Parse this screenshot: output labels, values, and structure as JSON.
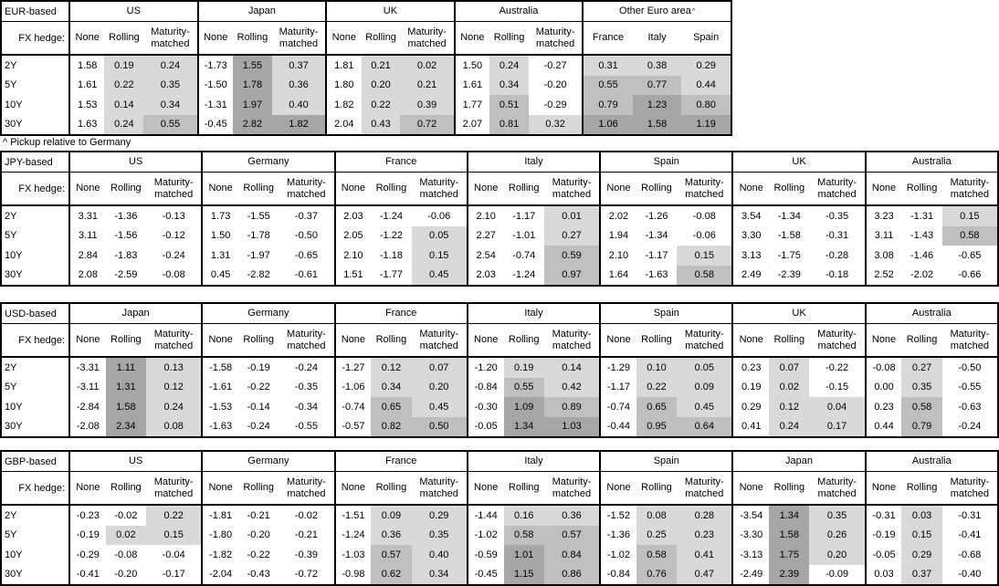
{
  "footnote": "^ Pickup relative to Germany",
  "row_header_label": "FX hedge:",
  "tenors": [
    "2Y",
    "5Y",
    "10Y",
    "30Y"
  ],
  "hedge_columns": [
    "None",
    "Rolling",
    "Maturity-matched"
  ],
  "colors": {
    "border": "#000000",
    "background": "#ffffff",
    "shade_light": "#d9d9d9",
    "shade_mid": "#bfbfbf",
    "shade_dark": "#a6a6a6"
  },
  "shading_rule": {
    "applies_to": "Rolling and Maturity-matched columns (all columns in Other Euro area block)",
    "light_min": 0,
    "mid_min": 0.5,
    "dark_min": 1.0
  },
  "tables": [
    {
      "base": "EUR-based",
      "groups": [
        {
          "country": "US",
          "cols": [
            "None",
            "Rolling",
            "Maturity-matched"
          ],
          "rows": [
            [
              "1.58",
              "0.19",
              "0.24"
            ],
            [
              "1.61",
              "0.22",
              "0.35"
            ],
            [
              "1.53",
              "0.14",
              "0.34"
            ],
            [
              "1.63",
              "0.24",
              "0.55"
            ]
          ]
        },
        {
          "country": "Japan",
          "cols": [
            "None",
            "Rolling",
            "Maturity-matched"
          ],
          "rows": [
            [
              "-1.73",
              "1.55",
              "0.37"
            ],
            [
              "-1.50",
              "1.78",
              "0.36"
            ],
            [
              "-1.31",
              "1.97",
              "0.40"
            ],
            [
              "-0.45",
              "2.82",
              "1.82"
            ]
          ]
        },
        {
          "country": "UK",
          "cols": [
            "None",
            "Rolling",
            "Maturity-matched"
          ],
          "rows": [
            [
              "1.81",
              "0.21",
              "0.02"
            ],
            [
              "1.80",
              "0.20",
              "0.21"
            ],
            [
              "1.82",
              "0.22",
              "0.39"
            ],
            [
              "2.04",
              "0.43",
              "0.72"
            ]
          ]
        },
        {
          "country": "Australia",
          "cols": [
            "None",
            "Rolling",
            "Maturity-matched"
          ],
          "rows": [
            [
              "1.50",
              "0.24",
              "-0.27"
            ],
            [
              "1.61",
              "0.34",
              "-0.20"
            ],
            [
              "1.77",
              "0.51",
              "-0.29"
            ],
            [
              "2.07",
              "0.81",
              "0.32"
            ]
          ]
        },
        {
          "country": "Other Euro area",
          "sup": "^",
          "shade_all": true,
          "cols": [
            "France",
            "Italy",
            "Spain"
          ],
          "rows": [
            [
              "0.31",
              "0.38",
              "0.29"
            ],
            [
              "0.55",
              "0.77",
              "0.44"
            ],
            [
              "0.79",
              "1.23",
              "0.80"
            ],
            [
              "1.06",
              "1.58",
              "1.19"
            ]
          ]
        }
      ]
    },
    {
      "base": "JPY-based",
      "groups": [
        {
          "country": "US",
          "cols": [
            "None",
            "Rolling",
            "Maturity-matched"
          ],
          "rows": [
            [
              "3.31",
              "-1.36",
              "-0.13"
            ],
            [
              "3.11",
              "-1.56",
              "-0.12"
            ],
            [
              "2.84",
              "-1.83",
              "-0.24"
            ],
            [
              "2.08",
              "-2.59",
              "-0.08"
            ]
          ]
        },
        {
          "country": "Germany",
          "cols": [
            "None",
            "Rolling",
            "Maturity-matched"
          ],
          "rows": [
            [
              "1.73",
              "-1.55",
              "-0.37"
            ],
            [
              "1.50",
              "-1.78",
              "-0.50"
            ],
            [
              "1.31",
              "-1.97",
              "-0.65"
            ],
            [
              "0.45",
              "-2.82",
              "-0.61"
            ]
          ]
        },
        {
          "country": "France",
          "cols": [
            "None",
            "Rolling",
            "Maturity-matched"
          ],
          "rows": [
            [
              "2.03",
              "-1.24",
              "-0.06"
            ],
            [
              "2.05",
              "-1.22",
              "0.05"
            ],
            [
              "2.10",
              "-1.18",
              "0.15"
            ],
            [
              "1.51",
              "-1.77",
              "0.45"
            ]
          ]
        },
        {
          "country": "Italy",
          "cols": [
            "None",
            "Rolling",
            "Maturity-matched"
          ],
          "rows": [
            [
              "2.10",
              "-1.17",
              "0.01"
            ],
            [
              "2.27",
              "-1.01",
              "0.27"
            ],
            [
              "2.54",
              "-0.74",
              "0.59"
            ],
            [
              "2.03",
              "-1.24",
              "0.97"
            ]
          ]
        },
        {
          "country": "Spain",
          "cols": [
            "None",
            "Rolling",
            "Maturity-matched"
          ],
          "rows": [
            [
              "2.02",
              "-1.26",
              "-0.08"
            ],
            [
              "1.94",
              "-1.34",
              "-0.06"
            ],
            [
              "2.10",
              "-1.17",
              "0.15"
            ],
            [
              "1.64",
              "-1.63",
              "0.58"
            ]
          ]
        },
        {
          "country": "UK",
          "cols": [
            "None",
            "Rolling",
            "Maturity-matched"
          ],
          "rows": [
            [
              "3.54",
              "-1.34",
              "-0.35"
            ],
            [
              "3.30",
              "-1.58",
              "-0.31"
            ],
            [
              "3.13",
              "-1.75",
              "-0.28"
            ],
            [
              "2.49",
              "-2.39",
              "-0.18"
            ]
          ]
        },
        {
          "country": "Australia",
          "cols": [
            "None",
            "Rolling",
            "Maturity-matched"
          ],
          "rows": [
            [
              "3.23",
              "-1.31",
              "0.15"
            ],
            [
              "3.11",
              "-1.43",
              "0.58"
            ],
            [
              "3.08",
              "-1.46",
              "-0.65"
            ],
            [
              "2.52",
              "-2.02",
              "-0.66"
            ]
          ]
        }
      ]
    },
    {
      "base": "USD-based",
      "groups": [
        {
          "country": "Japan",
          "cols": [
            "None",
            "Rolling",
            "Maturity-matched"
          ],
          "rows": [
            [
              "-3.31",
              "1.11",
              "0.13"
            ],
            [
              "-3.11",
              "1.31",
              "0.12"
            ],
            [
              "-2.84",
              "1.58",
              "0.24"
            ],
            [
              "-2.08",
              "2.34",
              "0.08"
            ]
          ]
        },
        {
          "country": "Germany",
          "cols": [
            "None",
            "Rolling",
            "Maturity-matched"
          ],
          "rows": [
            [
              "-1.58",
              "-0.19",
              "-0.24"
            ],
            [
              "-1.61",
              "-0.22",
              "-0.35"
            ],
            [
              "-1.53",
              "-0.14",
              "-0.34"
            ],
            [
              "-1.63",
              "-0.24",
              "-0.55"
            ]
          ]
        },
        {
          "country": "France",
          "cols": [
            "None",
            "Rolling",
            "Maturity-matched"
          ],
          "rows": [
            [
              "-1.27",
              "0.12",
              "0.07"
            ],
            [
              "-1.06",
              "0.34",
              "0.20"
            ],
            [
              "-0.74",
              "0.65",
              "0.45"
            ],
            [
              "-0.57",
              "0.82",
              "0.50"
            ]
          ]
        },
        {
          "country": "Italy",
          "cols": [
            "None",
            "Rolling",
            "Maturity-matched"
          ],
          "rows": [
            [
              "-1.20",
              "0.19",
              "0.14"
            ],
            [
              "-0.84",
              "0.55",
              "0.42"
            ],
            [
              "-0.30",
              "1.09",
              "0.89"
            ],
            [
              "-0.05",
              "1.34",
              "1.03"
            ]
          ]
        },
        {
          "country": "Spain",
          "cols": [
            "None",
            "Rolling",
            "Maturity-matched"
          ],
          "rows": [
            [
              "-1.29",
              "0.10",
              "0.05"
            ],
            [
              "-1.17",
              "0.22",
              "0.09"
            ],
            [
              "-0.74",
              "0.65",
              "0.45"
            ],
            [
              "-0.44",
              "0.95",
              "0.64"
            ]
          ]
        },
        {
          "country": "UK",
          "cols": [
            "None",
            "Rolling",
            "Maturity-matched"
          ],
          "rows": [
            [
              "0.23",
              "0.07",
              "-0.22"
            ],
            [
              "0.19",
              "0.02",
              "-0.15"
            ],
            [
              "0.29",
              "0.12",
              "0.04"
            ],
            [
              "0.41",
              "0.24",
              "0.17"
            ]
          ]
        },
        {
          "country": "Australia",
          "cols": [
            "None",
            "Rolling",
            "Maturity-matched"
          ],
          "rows": [
            [
              "-0.08",
              "0.27",
              "-0.50"
            ],
            [
              "0.00",
              "0.35",
              "-0.55"
            ],
            [
              "0.23",
              "0.58",
              "-0.63"
            ],
            [
              "0.44",
              "0.79",
              "-0.24"
            ]
          ]
        }
      ]
    },
    {
      "base": "GBP-based",
      "groups": [
        {
          "country": "US",
          "cols": [
            "None",
            "Rolling",
            "Maturity-matched"
          ],
          "rows": [
            [
              "-0.23",
              "-0.02",
              "0.22"
            ],
            [
              "-0.19",
              "0.02",
              "0.15"
            ],
            [
              "-0.29",
              "-0.08",
              "-0.04"
            ],
            [
              "-0.41",
              "-0.20",
              "-0.17"
            ]
          ]
        },
        {
          "country": "Germany",
          "cols": [
            "None",
            "Rolling",
            "Maturity-matched"
          ],
          "rows": [
            [
              "-1.81",
              "-0.21",
              "-0.02"
            ],
            [
              "-1.80",
              "-0.20",
              "-0.21"
            ],
            [
              "-1.82",
              "-0.22",
              "-0.39"
            ],
            [
              "-2.04",
              "-0.43",
              "-0.72"
            ]
          ]
        },
        {
          "country": "France",
          "cols": [
            "None",
            "Rolling",
            "Maturity-matched"
          ],
          "rows": [
            [
              "-1.51",
              "0.09",
              "0.29"
            ],
            [
              "-1.24",
              "0.36",
              "0.35"
            ],
            [
              "-1.03",
              "0.57",
              "0.40"
            ],
            [
              "-0.98",
              "0.62",
              "0.34"
            ]
          ]
        },
        {
          "country": "Italy",
          "cols": [
            "None",
            "Rolling",
            "Maturity-matched"
          ],
          "rows": [
            [
              "-1.44",
              "0.16",
              "0.36"
            ],
            [
              "-1.02",
              "0.58",
              "0.57"
            ],
            [
              "-0.59",
              "1.01",
              "0.84"
            ],
            [
              "-0.45",
              "1.15",
              "0.86"
            ]
          ]
        },
        {
          "country": "Spain",
          "cols": [
            "None",
            "Rolling",
            "Maturity-matched"
          ],
          "rows": [
            [
              "-1.52",
              "0.08",
              "0.28"
            ],
            [
              "-1.36",
              "0.25",
              "0.23"
            ],
            [
              "-1.02",
              "0.58",
              "0.41"
            ],
            [
              "-0.84",
              "0.76",
              "0.47"
            ]
          ]
        },
        {
          "country": "Japan",
          "cols": [
            "None",
            "Rolling",
            "Maturity-matched"
          ],
          "rows": [
            [
              "-3.54",
              "1.34",
              "0.35"
            ],
            [
              "-3.30",
              "1.58",
              "0.26"
            ],
            [
              "-3.13",
              "1.75",
              "0.20"
            ],
            [
              "-2.49",
              "2.39",
              "-0.09"
            ]
          ]
        },
        {
          "country": "Australia",
          "cols": [
            "None",
            "Rolling",
            "Maturity-matched"
          ],
          "rows": [
            [
              "-0.31",
              "0.03",
              "-0.31"
            ],
            [
              "-0.19",
              "0.15",
              "-0.41"
            ],
            [
              "-0.05",
              "0.29",
              "-0.68"
            ],
            [
              "0.03",
              "0.37",
              "-0.40"
            ]
          ]
        }
      ]
    }
  ]
}
